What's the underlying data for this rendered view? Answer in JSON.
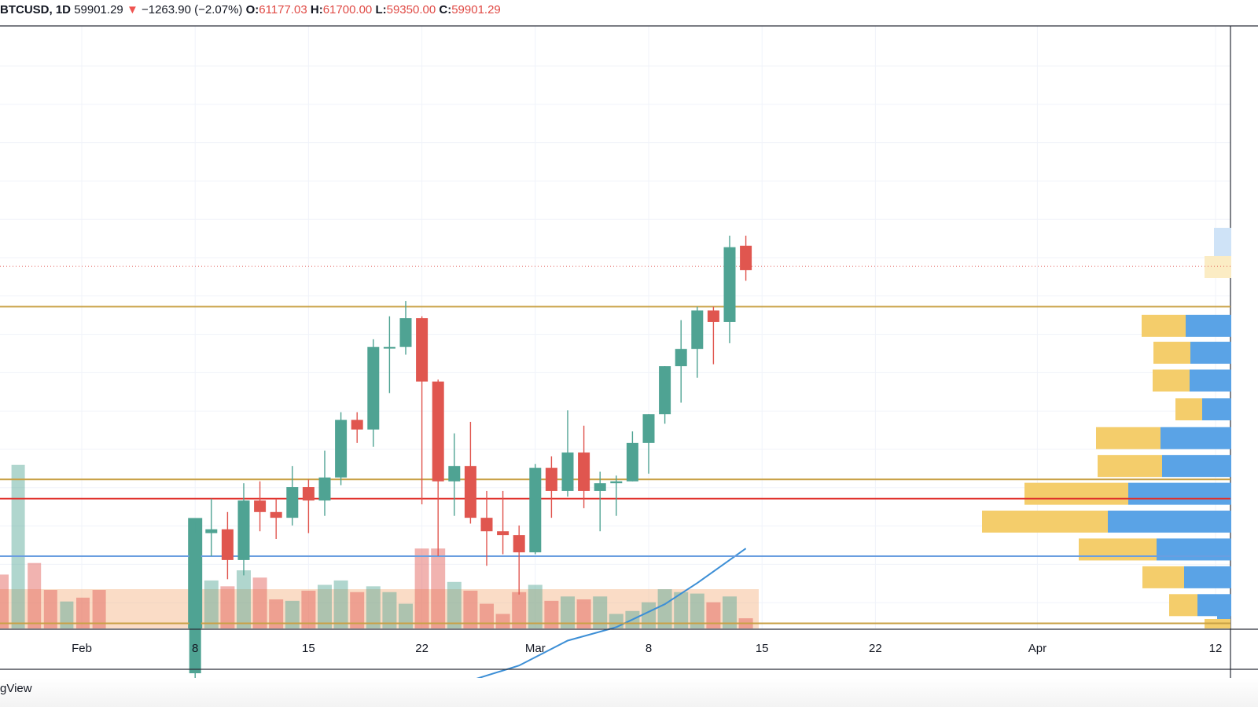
{
  "header": {
    "symbol": "BTCUSD, 1D",
    "last": "59901.29",
    "arrow": "▼",
    "change": "−1263.90 (−2.07%)",
    "o_label": "O:",
    "o_value": "61177.03",
    "h_label": "H:",
    "h_value": "61700.00",
    "l_label": "L:",
    "l_value": "59350.00",
    "c_label": "C:",
    "c_value": "59901.29"
  },
  "branding": "gView",
  "colors": {
    "up": "#4fa393",
    "down": "#e0564f",
    "ma": "#3d8fd6",
    "level_gold": "#c9a146",
    "level_red": "#e0312b",
    "level_blue": "#6a9ee0",
    "vp_up": "#f4cd6b",
    "vp_down": "#5aa3e6",
    "grid": "#f0f3fa"
  },
  "chart_data": {
    "type": "candlestick",
    "title": "",
    "price_axis_visible": false,
    "x_tick_labels": [
      "Feb",
      "8",
      "15",
      "22",
      "Mar",
      "8",
      "15",
      "22",
      "Apr",
      "12"
    ],
    "x_tick_dates": [
      "2021-02-01",
      "2021-02-08",
      "2021-02-15",
      "2021-02-22",
      "2021-03-01",
      "2021-03-08",
      "2021-03-15",
      "2021-03-22",
      "2021-04-01",
      "2021-04-12"
    ],
    "ohlc": [
      {
        "date": "2021-02-08",
        "o": 38900,
        "h": 46800,
        "l": 37900,
        "c": 46200
      },
      {
        "date": "2021-02-09",
        "o": 46200,
        "h": 48000,
        "l": 45000,
        "c": 46400
      },
      {
        "date": "2021-02-10",
        "o": 46400,
        "h": 47300,
        "l": 43800,
        "c": 44800
      },
      {
        "date": "2021-02-11",
        "o": 44800,
        "h": 48800,
        "l": 44000,
        "c": 47900
      },
      {
        "date": "2021-02-12",
        "o": 47900,
        "h": 48900,
        "l": 46300,
        "c": 47300
      },
      {
        "date": "2021-02-13",
        "o": 47300,
        "h": 48000,
        "l": 45900,
        "c": 47000
      },
      {
        "date": "2021-02-14",
        "o": 47000,
        "h": 49700,
        "l": 46600,
        "c": 48600
      },
      {
        "date": "2021-02-15",
        "o": 48600,
        "h": 49000,
        "l": 46200,
        "c": 47900
      },
      {
        "date": "2021-02-16",
        "o": 47900,
        "h": 50500,
        "l": 47100,
        "c": 49100
      },
      {
        "date": "2021-02-17",
        "o": 49100,
        "h": 52500,
        "l": 48700,
        "c": 52100
      },
      {
        "date": "2021-02-18",
        "o": 52100,
        "h": 52500,
        "l": 50900,
        "c": 51600
      },
      {
        "date": "2021-02-19",
        "o": 51600,
        "h": 56300,
        "l": 50700,
        "c": 55900
      },
      {
        "date": "2021-02-20",
        "o": 55900,
        "h": 57500,
        "l": 53500,
        "c": 55900
      },
      {
        "date": "2021-02-21",
        "o": 55900,
        "h": 58300,
        "l": 55500,
        "c": 57400
      },
      {
        "date": "2021-02-22",
        "o": 57400,
        "h": 57500,
        "l": 47700,
        "c": 54100
      },
      {
        "date": "2021-02-23",
        "o": 54100,
        "h": 54200,
        "l": 45000,
        "c": 48900
      },
      {
        "date": "2021-02-24",
        "o": 48900,
        "h": 51400,
        "l": 47100,
        "c": 49700
      },
      {
        "date": "2021-02-25",
        "o": 49700,
        "h": 52000,
        "l": 46700,
        "c": 47000
      },
      {
        "date": "2021-02-26",
        "o": 47000,
        "h": 48400,
        "l": 44500,
        "c": 46300
      },
      {
        "date": "2021-02-27",
        "o": 46300,
        "h": 48400,
        "l": 45100,
        "c": 46100
      },
      {
        "date": "2021-02-28",
        "o": 46100,
        "h": 46600,
        "l": 43000,
        "c": 45200
      },
      {
        "date": "2021-03-01",
        "o": 45200,
        "h": 49800,
        "l": 45100,
        "c": 49600
      },
      {
        "date": "2021-03-02",
        "o": 49600,
        "h": 50200,
        "l": 47000,
        "c": 48400
      },
      {
        "date": "2021-03-03",
        "o": 48400,
        "h": 52600,
        "l": 48100,
        "c": 50400
      },
      {
        "date": "2021-03-04",
        "o": 50400,
        "h": 51800,
        "l": 47500,
        "c": 48400
      },
      {
        "date": "2021-03-05",
        "o": 48400,
        "h": 49400,
        "l": 46300,
        "c": 48800
      },
      {
        "date": "2021-03-06",
        "o": 48800,
        "h": 49200,
        "l": 47100,
        "c": 48900
      },
      {
        "date": "2021-03-07",
        "o": 48900,
        "h": 51500,
        "l": 48900,
        "c": 50900
      },
      {
        "date": "2021-03-08",
        "o": 50900,
        "h": 52400,
        "l": 49300,
        "c": 52400
      },
      {
        "date": "2021-03-09",
        "o": 52400,
        "h": 54900,
        "l": 51900,
        "c": 54900
      },
      {
        "date": "2021-03-10",
        "o": 54900,
        "h": 57300,
        "l": 53000,
        "c": 55800
      },
      {
        "date": "2021-03-11",
        "o": 55800,
        "h": 58000,
        "l": 54300,
        "c": 57800
      },
      {
        "date": "2021-03-12",
        "o": 57800,
        "h": 58000,
        "l": 55000,
        "c": 57200
      },
      {
        "date": "2021-03-13",
        "o": 57200,
        "h": 61700,
        "l": 56100,
        "c": 61100
      },
      {
        "date": "2021-03-14",
        "o": 61177.03,
        "h": 61700,
        "l": 59350,
        "c": 59901.29
      }
    ],
    "left_edge_volume_bars": [
      0.28,
      0.85,
      0.34,
      0.2,
      0.14,
      0.16,
      0.2
    ],
    "volume": [
      0.76,
      0.33,
      0.29,
      0.4,
      0.35,
      0.2,
      0.19,
      0.26,
      0.3,
      0.33,
      0.25,
      0.29,
      0.25,
      0.17,
      0.55,
      0.55,
      0.32,
      0.26,
      0.17,
      0.1,
      0.25,
      0.3,
      0.19,
      0.22,
      0.2,
      0.22,
      0.1,
      0.12,
      0.18,
      0.27,
      0.25,
      0.24,
      0.18,
      0.22,
      0.07
    ],
    "moving_average": [
      {
        "date": "2021-02-23",
        "value": 38000
      },
      {
        "date": "2021-02-28",
        "value": 39300
      },
      {
        "date": "2021-03-03",
        "value": 40600
      },
      {
        "date": "2021-03-06",
        "value": 41300
      },
      {
        "date": "2021-03-09",
        "value": 42500
      },
      {
        "date": "2021-03-11",
        "value": 43600
      },
      {
        "date": "2021-03-14",
        "value": 45400
      }
    ],
    "horizontal_levels": [
      {
        "price": 58000,
        "color": "gold"
      },
      {
        "price": 60100,
        "color": "last-price-dotted"
      },
      {
        "price": 49000,
        "color": "gold"
      },
      {
        "price": 48000,
        "color": "red"
      },
      {
        "price": 45000,
        "color": "blue"
      },
      {
        "price": 41500,
        "color": "gold"
      }
    ],
    "volume_profile": [
      {
        "price": 57000,
        "up": 56,
        "down": 58
      },
      {
        "price": 55600,
        "up": 47,
        "down": 52
      },
      {
        "price": 54150,
        "up": 47,
        "down": 53
      },
      {
        "price": 52650,
        "up": 34,
        "down": 37
      },
      {
        "price": 51150,
        "up": 82,
        "down": 90
      },
      {
        "price": 49700,
        "up": 82,
        "down": 88
      },
      {
        "price": 48250,
        "up": 132,
        "down": 131
      },
      {
        "price": 46800,
        "up": 160,
        "down": 157
      },
      {
        "price": 45350,
        "up": 99,
        "down": 95
      },
      {
        "price": 43900,
        "up": 53,
        "down": 60
      },
      {
        "price": 42450,
        "up": 36,
        "down": 43
      }
    ]
  }
}
